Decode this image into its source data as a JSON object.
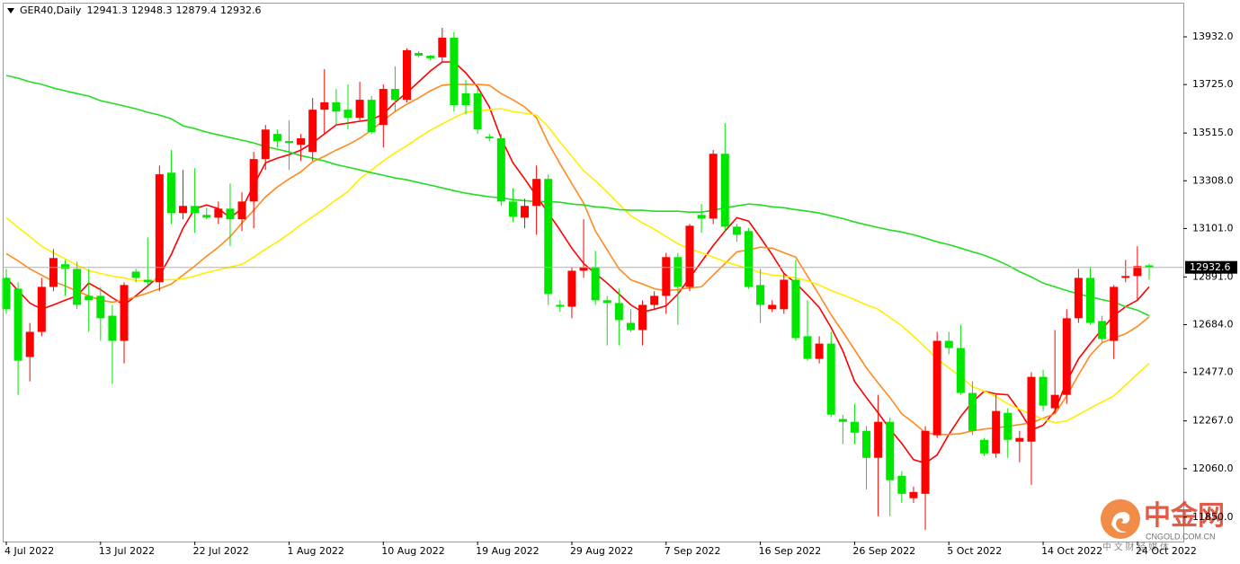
{
  "chart_data": {
    "type": "candlestick",
    "title": "GER40,Daily",
    "categories": [
      "4 Jul 2022",
      null,
      null,
      null,
      null,
      null,
      null,
      null,
      "13 Jul 2022",
      null,
      null,
      null,
      null,
      null,
      null,
      null,
      "22 Jul 2022",
      null,
      null,
      null,
      null,
      null,
      null,
      null,
      "1 Aug 2022",
      null,
      null,
      null,
      null,
      null,
      null,
      null,
      "10 Aug 2022",
      null,
      null,
      null,
      null,
      null,
      null,
      null,
      "19 Aug 2022",
      null,
      null,
      null,
      null,
      null,
      null,
      null,
      "29 Aug 2022",
      null,
      null,
      null,
      null,
      null,
      null,
      null,
      "7 Sep 2022",
      null,
      null,
      null,
      null,
      null,
      null,
      null,
      "16 Sep 2022",
      null,
      null,
      null,
      null,
      null,
      null,
      null,
      "26 Sep 2022",
      null,
      null,
      null,
      null,
      null,
      null,
      null,
      "5 Oct 2022",
      null,
      null,
      null,
      null,
      null,
      null,
      null,
      "14 Oct 2022",
      null,
      null,
      null,
      null,
      null,
      null,
      null,
      "24 Oct 2022",
      null
    ],
    "open": [
      12887,
      12840,
      12544,
      12653,
      12848,
      12946,
      12926,
      12809,
      12809,
      12723,
      12614,
      12914,
      12879,
      12868,
      13343,
      13168,
      13199,
      13160,
      13148,
      13187,
      13141,
      13218,
      13402,
      13511,
      13480,
      13464,
      13433,
      13616,
      13648,
      13616,
      13581,
      13659,
      13550,
      13706,
      13659,
      13862,
      13850,
      13843,
      13928,
      13687,
      13687,
      13499,
      13492,
      13218,
      13148,
      13199,
      13316,
      12770,
      12762,
      12918,
      12934,
      12790,
      12778,
      12692,
      12661,
      12770,
      12809,
      12977,
      12848,
      13160,
      13144,
      13425,
      13109,
      13090,
      12856,
      12751,
      12751,
      12879,
      12634,
      12536,
      12602,
      12275,
      12263,
      12224,
      12107,
      12263,
      12029,
      11932,
      11951,
      12205,
      12614,
      12583,
      12388,
      12185,
      12126,
      12302,
      12177,
      12177,
      12458,
      12322,
      12380,
      12712,
      12887,
      12700,
      12614,
      12887,
      12895,
      12941.3
    ],
    "high": [
      12926,
      12868,
      12692,
      12887,
      13012,
      12965,
      12957,
      12926,
      12848,
      12770,
      12868,
      12926,
      13062,
      13374,
      13441,
      13355,
      13363,
      13191,
      13218,
      13296,
      13258,
      13433,
      13550,
      13530,
      13570,
      13511,
      13667,
      13792,
      13706,
      13726,
      13737,
      13675,
      13726,
      13804,
      13882,
      13870,
      13854,
      13971,
      13952,
      13745,
      13706,
      13511,
      13511,
      13277,
      13230,
      13374,
      13336,
      12790,
      12934,
      13141,
      13004,
      12809,
      12840,
      12751,
      12790,
      12829,
      12996,
      12996,
      13121,
      13207,
      13441,
      13558,
      13121,
      13102,
      12926,
      12790,
      12907,
      12965,
      12790,
      12634,
      12653,
      12294,
      12341,
      12244,
      12380,
      12282,
      12049,
      11982,
      12244,
      12653,
      12653,
      12684,
      12438,
      12193,
      12380,
      12322,
      12224,
      12478,
      12489,
      12661,
      12751,
      12926,
      12934,
      12723,
      12856,
      12965,
      13024,
      12948.3
    ],
    "low": [
      12731,
      12380,
      12438,
      12634,
      12829,
      12809,
      12751,
      12653,
      12614,
      12427,
      12516,
      12868,
      12856,
      12829,
      13121,
      13141,
      13082,
      13141,
      13121,
      13024,
      13090,
      13102,
      13355,
      13452,
      13355,
      13394,
      13394,
      13511,
      13550,
      13530,
      13570,
      13511,
      13452,
      13608,
      13648,
      13843,
      13831,
      13823,
      13608,
      13597,
      13511,
      13480,
      13199,
      13129,
      13102,
      13074,
      12770,
      12739,
      12712,
      12887,
      12770,
      12594,
      12594,
      12653,
      12594,
      12751,
      12731,
      12684,
      12829,
      13082,
      13121,
      13090,
      13043,
      12840,
      12692,
      12739,
      12731,
      12614,
      12528,
      12516,
      12283,
      12166,
      12166,
      11970,
      11854,
      11854,
      11912,
      11912,
      11795,
      12193,
      12556,
      12380,
      12205,
      12115,
      12107,
      12107,
      12088,
      11990,
      12310,
      12302,
      12341,
      12692,
      12684,
      12606,
      12536,
      12868,
      12790,
      12879.4
    ],
    "close": [
      12751,
      12528,
      12653,
      12848,
      12973,
      12926,
      12770,
      12790,
      12712,
      12614,
      12856,
      12887,
      12868,
      13336,
      13168,
      13199,
      13168,
      13148,
      13187,
      13141,
      13218,
      13402,
      13530,
      13480,
      13472,
      13492,
      13616,
      13648,
      13608,
      13581,
      13659,
      13519,
      13706,
      13659,
      13874,
      13850,
      13839,
      13928,
      13636,
      13636,
      13530,
      13492,
      13218,
      13152,
      13199,
      13316,
      12817,
      12762,
      12918,
      12934,
      12790,
      12778,
      12704,
      12661,
      12770,
      12809,
      12977,
      12848,
      13113,
      13144,
      13425,
      13109,
      13074,
      12848,
      12770,
      12770,
      12879,
      12626,
      12536,
      12602,
      12294,
      12263,
      12216,
      12107,
      12263,
      12010,
      11951,
      11959,
      12224,
      12614,
      12583,
      12388,
      12224,
      12126,
      12310,
      12185,
      12193,
      12458,
      12333,
      12380,
      12712,
      12887,
      12692,
      12622,
      12848,
      12895,
      12938,
      12932.6
    ],
    "bull_color": "#ff0000",
    "bear_color": "#00e600",
    "series": [
      {
        "color": "#ff0000",
        "values": [
          12887,
          12832,
          12778,
          12751,
          12770,
          12790,
          12809,
          12864,
          12836,
          12801,
          12770,
          12809,
          12852,
          12895,
          12988,
          13102,
          13187,
          13203,
          13187,
          13148,
          13187,
          13289,
          13386,
          13406,
          13421,
          13441,
          13472,
          13511,
          13550,
          13558,
          13566,
          13573,
          13597,
          13648,
          13690,
          13737,
          13784,
          13823,
          13823,
          13776,
          13714,
          13628,
          13492,
          13386,
          13316,
          13242,
          13168,
          13094,
          13016,
          12949,
          12906,
          12864,
          12817,
          12770,
          12739,
          12751,
          12766,
          12817,
          12887,
          12957,
          13027,
          13090,
          13148,
          13133,
          13062,
          12988,
          12906,
          12864,
          12813,
          12759,
          12672,
          12571,
          12438,
          12368,
          12302,
          12232,
          12169,
          12099,
          12084,
          12119,
          12208,
          12286,
          12349,
          12396,
          12384,
          12380,
          12310,
          12228,
          12248,
          12310,
          12438,
          12536,
          12602,
          12665,
          12723,
          12762,
          12790,
          12848
        ]
      },
      {
        "color": "#ff8a1e",
        "values": [
          12992,
          12961,
          12926,
          12899,
          12871,
          12852,
          12829,
          12809,
          12790,
          12782,
          12790,
          12805,
          12821,
          12840,
          12860,
          12899,
          12938,
          12981,
          13020,
          13066,
          13125,
          13180,
          13238,
          13281,
          13316,
          13347,
          13390,
          13414,
          13441,
          13464,
          13492,
          13527,
          13570,
          13608,
          13640,
          13667,
          13698,
          13722,
          13726,
          13726,
          13726,
          13722,
          13686,
          13659,
          13628,
          13581,
          13472,
          13382,
          13296,
          13211,
          13090,
          13008,
          12926,
          12879,
          12860,
          12840,
          12832,
          12836,
          12844,
          12848,
          12899,
          12949,
          13000,
          13008,
          13020,
          13016,
          12996,
          12977,
          12895,
          12813,
          12727,
          12653,
          12575,
          12497,
          12431,
          12368,
          12298,
          12259,
          12216,
          12208,
          12208,
          12212,
          12224,
          12232,
          12236,
          12244,
          12251,
          12259,
          12279,
          12298,
          12376,
          12466,
          12552,
          12606,
          12626,
          12645,
          12676,
          12719
        ]
      },
      {
        "color": "#ffee00",
        "values": [
          13148,
          13105,
          13066,
          13024,
          12996,
          12969,
          12942,
          12918,
          12906,
          12895,
          12887,
          12875,
          12875,
          12879,
          12879,
          12883,
          12895,
          12910,
          12922,
          12934,
          12946,
          12977,
          13012,
          13043,
          13078,
          13117,
          13152,
          13187,
          13226,
          13261,
          13316,
          13355,
          13394,
          13429,
          13460,
          13495,
          13527,
          13554,
          13581,
          13605,
          13612,
          13616,
          13620,
          13608,
          13601,
          13593,
          13542,
          13476,
          13414,
          13351,
          13308,
          13258,
          13207,
          13156,
          13125,
          13098,
          13066,
          13035,
          13012,
          12996,
          12977,
          12957,
          12942,
          12926,
          12910,
          12899,
          12895,
          12887,
          12875,
          12856,
          12832,
          12813,
          12793,
          12770,
          12751,
          12715,
          12680,
          12634,
          12587,
          12536,
          12497,
          12458,
          12415,
          12396,
          12372,
          12341,
          12318,
          12294,
          12275,
          12259,
          12267,
          12294,
          12322,
          12349,
          12376,
          12423,
          12470,
          12516
        ]
      },
      {
        "color": "#22dd22",
        "values": [
          13764,
          13753,
          13737,
          13726,
          13710,
          13698,
          13686,
          13675,
          13655,
          13644,
          13632,
          13620,
          13605,
          13593,
          13577,
          13546,
          13534,
          13519,
          13507,
          13495,
          13484,
          13472,
          13456,
          13445,
          13433,
          13417,
          13406,
          13394,
          13378,
          13367,
          13355,
          13343,
          13332,
          13320,
          13312,
          13300,
          13289,
          13277,
          13265,
          13254,
          13246,
          13238,
          13234,
          13226,
          13222,
          13218,
          13218,
          13215,
          13207,
          13203,
          13195,
          13191,
          13183,
          13180,
          13180,
          13176,
          13176,
          13176,
          13172,
          13172,
          13180,
          13191,
          13199,
          13207,
          13203,
          13195,
          13191,
          13183,
          13176,
          13168,
          13156,
          13144,
          13129,
          13117,
          13105,
          13094,
          13086,
          13074,
          13059,
          13043,
          13031,
          13016,
          13000,
          12985,
          12965,
          12942,
          12914,
          12891,
          12864,
          12848,
          12832,
          12817,
          12805,
          12793,
          12782,
          12762,
          12747,
          12723
        ]
      }
    ],
    "ylim": [
      11744,
      14076
    ],
    "yticks": [
      {
        "value": 13932,
        "label": "13932.0"
      },
      {
        "value": 13725,
        "label": "13725.0"
      },
      {
        "value": 13515,
        "label": "13515.0"
      },
      {
        "value": 13308,
        "label": "13308.0"
      },
      {
        "value": 13101,
        "label": "13101.0"
      },
      {
        "value": 12891,
        "label": "12891.0"
      },
      {
        "value": 12684,
        "label": "12684.0"
      },
      {
        "value": 12477,
        "label": "12477.0"
      },
      {
        "value": 12267,
        "label": "12267.0"
      },
      {
        "value": 12060,
        "label": "12060.0"
      },
      {
        "value": 11850,
        "label": "11850.0"
      }
    ],
    "grid": false,
    "watermark": {
      "brand": "中金网",
      "url": "CNGOLD.COM.CN",
      "tagline": "中 文 财 经 媒 体"
    }
  }
}
